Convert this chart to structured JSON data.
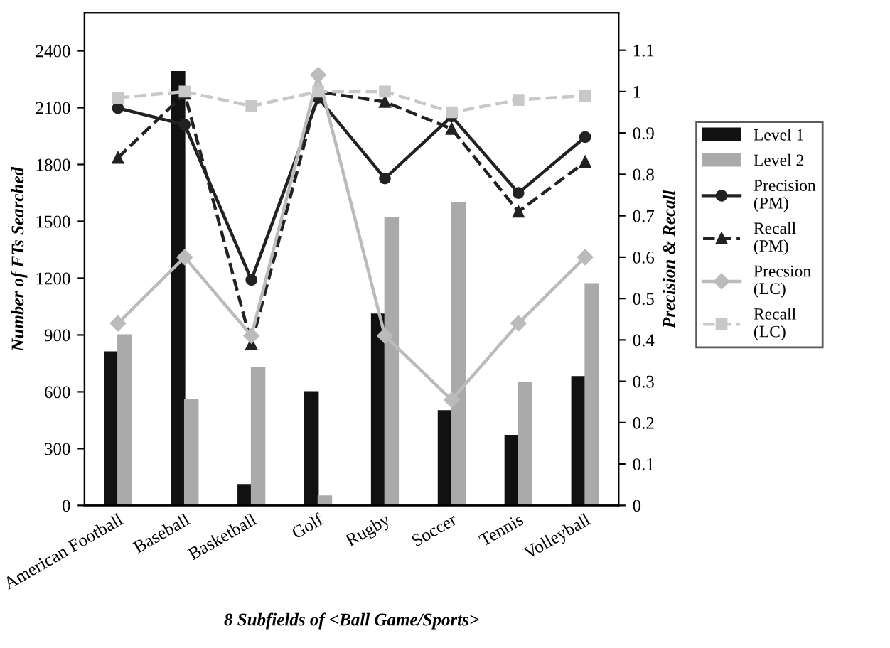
{
  "chart_data": {
    "type": "bar",
    "xlabel": "8 Subfields of <Ball Game/Sports>",
    "ylabel": "Number of FTs Searched",
    "y2label": "Precision & Recall",
    "categories": [
      "American Football",
      "Baseball",
      "Basketball",
      "Golf",
      "Rugby",
      "Soccer",
      "Tennis",
      "Volleyball"
    ],
    "series": [
      {
        "name": "Level 1",
        "color": "#111111",
        "values": [
          810,
          2290,
          110,
          600,
          1010,
          500,
          370,
          680
        ]
      },
      {
        "name": "Level 2",
        "color": "#aaaaaa",
        "values": [
          900,
          560,
          730,
          50,
          1520,
          1600,
          650,
          1170
        ]
      },
      {
        "name": "Precision (PM)",
        "type": "line",
        "axis": "y2",
        "color": "#222222",
        "marker": "circle",
        "line_style": "solid",
        "values": [
          0.96,
          0.92,
          0.545,
          0.985,
          0.79,
          0.94,
          0.755,
          0.89
        ]
      },
      {
        "name": "Recall (PM)",
        "type": "line",
        "axis": "y2",
        "color": "#222222",
        "marker": "triangle",
        "line_style": "dashed",
        "values": [
          0.84,
          0.995,
          0.39,
          1.0,
          0.975,
          0.91,
          0.71,
          0.83
        ]
      },
      {
        "name": "Precsion (LC)",
        "type": "line",
        "axis": "y2",
        "color": "#bbbbbb",
        "marker": "diamond",
        "line_style": "solid",
        "values": [
          0.44,
          0.6,
          0.41,
          1.04,
          0.41,
          0.255,
          0.44,
          0.6
        ]
      },
      {
        "name": "Recall (LC)",
        "type": "line",
        "axis": "y2",
        "color": "#c8c8c8",
        "marker": "square",
        "line_style": "dashed",
        "values": [
          0.985,
          1.0,
          0.965,
          1.0,
          1.0,
          0.95,
          0.98,
          0.99
        ]
      }
    ],
    "ylim": [
      0,
      2600
    ],
    "yticks": [
      0,
      300,
      600,
      900,
      1200,
      1500,
      1800,
      2100,
      2400
    ],
    "y2lim": [
      0,
      1.19
    ],
    "y2ticks": [
      0,
      0.1,
      0.2,
      0.3,
      0.4,
      0.5,
      0.6,
      0.7,
      0.8,
      0.9,
      1,
      1.1
    ],
    "legend": "right",
    "grid": false
  }
}
